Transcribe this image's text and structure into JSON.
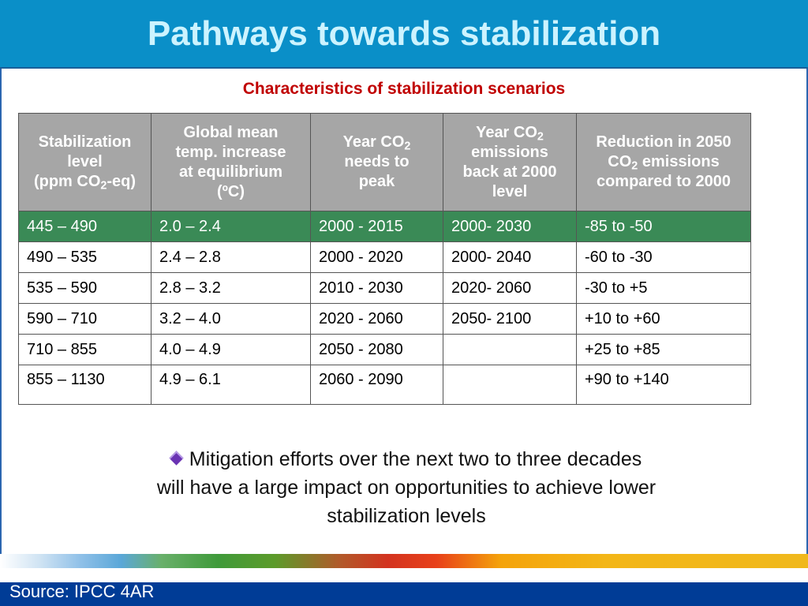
{
  "slide": {
    "title": "Pathways towards stabilization",
    "subtitle": "Characteristics of stabilization scenarios",
    "bullet_lines": [
      "Mitigation efforts over the next two to three decades",
      "will have a large impact on opportunities to achieve lower",
      "stabilization levels"
    ],
    "source": "Source: IPCC 4AR"
  },
  "table": {
    "headers": [
      [
        "Stabilization",
        "level",
        "(ppm CO",
        "2",
        "-eq)"
      ],
      [
        "Global mean",
        "temp. increase",
        "at equilibrium",
        "(ºC)"
      ],
      [
        "Year CO",
        "2",
        "needs to",
        "peak"
      ],
      [
        "Year CO",
        "2",
        "emissions",
        "back at 2000",
        "level"
      ],
      [
        "Reduction in 2050",
        "CO",
        "2",
        " emissions",
        "compared to 2000"
      ]
    ],
    "rows": [
      [
        "445 – 490",
        "2.0 – 2.4",
        "2000 - 2015",
        "2000- 2030",
        "-85 to -50"
      ],
      [
        "490 – 535",
        "2.4 – 2.8",
        "2000 - 2020",
        "2000- 2040",
        "-60 to -30"
      ],
      [
        "535 – 590",
        "2.8 – 3.2",
        "2010 - 2030",
        "2020- 2060",
        "-30 to +5"
      ],
      [
        "590 – 710",
        "3.2 – 4.0",
        "2020 - 2060",
        "2050- 2100",
        "+10 to +60"
      ],
      [
        "710 – 855",
        "4.0 – 4.9",
        "2050 - 2080",
        "",
        "+25 to +85"
      ],
      [
        "855 – 1130",
        "4.9 – 6.1",
        "2060 - 2090",
        "",
        "+90 to +140"
      ]
    ],
    "highlight_color": "#3a8a56",
    "header_color": "#a6a6a6"
  }
}
